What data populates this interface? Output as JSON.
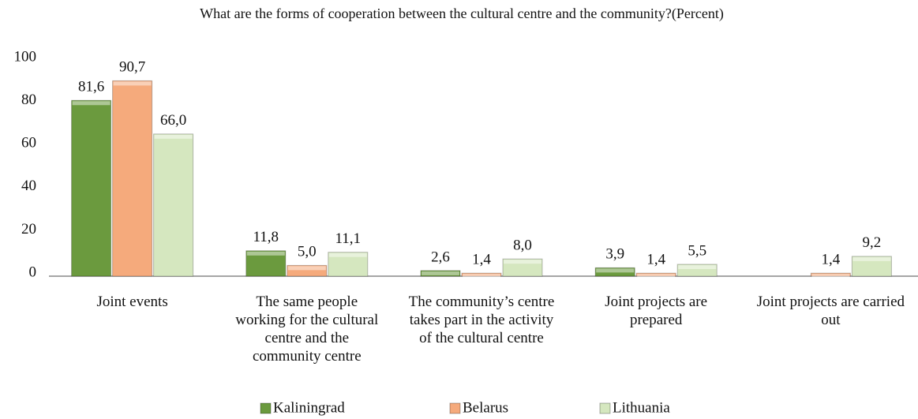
{
  "chart_data": {
    "type": "bar",
    "title": "What are the forms of cooperation between the cultural centre and the community?(Percent)",
    "categories": [
      "Joint events",
      "The same people working for the cultural centre and the community centre",
      "The community’s centre takes part in the activity of the cultural centre",
      "Joint projects are prepared",
      "Joint projects are carried out"
    ],
    "series": [
      {
        "name": "Kaliningrad",
        "color": "#6b9a3e",
        "values": [
          81.6,
          11.8,
          2.6,
          3.9,
          null
        ],
        "value_labels": [
          "81,6",
          "11,8",
          "2,6",
          "3,9",
          null
        ]
      },
      {
        "name": "Belarus",
        "color": "#f5aa7c",
        "values": [
          90.7,
          5.0,
          1.4,
          1.4,
          1.4
        ],
        "value_labels": [
          "90,7",
          "5,0",
          "1,4",
          "1,4",
          "1,4"
        ]
      },
      {
        "name": "Lithuania",
        "color": "#d5e7bf",
        "values": [
          66.0,
          11.1,
          8.0,
          5.5,
          9.2
        ],
        "value_labels": [
          "66,0",
          "11,1",
          "8,0",
          "5,5",
          "9,2"
        ]
      }
    ],
    "ylim": [
      0,
      100
    ],
    "yticks": [
      0,
      20,
      40,
      60,
      80,
      100
    ],
    "grid": false,
    "legend": "bottom"
  }
}
